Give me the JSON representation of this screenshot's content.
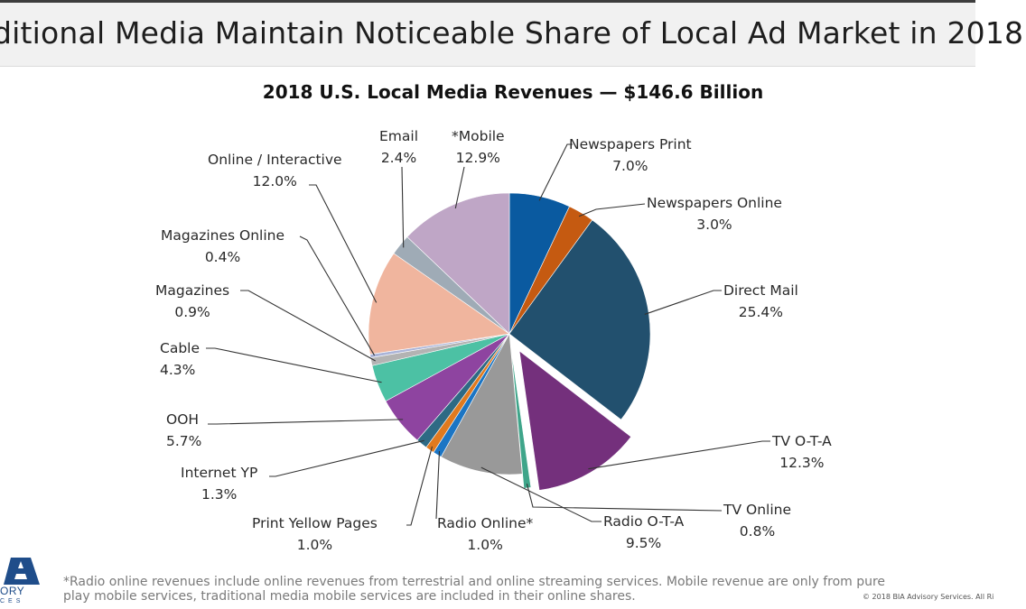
{
  "headline": "ditional Media Maintain Noticeable Share of Local Ad Market in 2018",
  "chart_data": {
    "type": "pie",
    "title": "2018 U.S. Local Media Revenues — $146.6 Billion",
    "start": "12 o'clock, clockwise",
    "slices": [
      {
        "name": "Newspapers Print",
        "value": 7.0,
        "label": "7.0%",
        "color": "#0a5aa0",
        "exploded": false
      },
      {
        "name": "Newspapers Online",
        "value": 3.0,
        "label": "3.0%",
        "color": "#c55a11",
        "exploded": false
      },
      {
        "name": "Direct Mail",
        "value": 25.4,
        "label": "25.4%",
        "color": "#22506e",
        "exploded": false
      },
      {
        "name": "TV O-T-A",
        "value": 12.3,
        "label": "12.3%",
        "color": "#74307c",
        "exploded": true
      },
      {
        "name": "TV Online",
        "value": 0.8,
        "label": "0.8%",
        "color": "#3fa58a",
        "exploded": true
      },
      {
        "name": "Radio O-T-A",
        "value": 9.5,
        "label": "9.5%",
        "color": "#999999",
        "exploded": false
      },
      {
        "name": "Radio Online*",
        "value": 1.0,
        "label": "1.0%",
        "color": "#1b75c4",
        "exploded": false
      },
      {
        "name": "Print Yellow Pages",
        "value": 1.0,
        "label": "1.0%",
        "color": "#e07a1f",
        "exploded": false
      },
      {
        "name": "Internet YP",
        "value": 1.3,
        "label": "1.3%",
        "color": "#2e6a84",
        "exploded": false
      },
      {
        "name": "OOH",
        "value": 5.7,
        "label": "5.7%",
        "color": "#8e44a0",
        "exploded": false
      },
      {
        "name": "Cable",
        "value": 4.3,
        "label": "4.3%",
        "color": "#4cc1a4",
        "exploded": false
      },
      {
        "name": "Magazines",
        "value": 0.9,
        "label": "0.9%",
        "color": "#b3b3b3",
        "exploded": false
      },
      {
        "name": "Magazines Online",
        "value": 0.4,
        "label": "0.4%",
        "color": "#aab4d8",
        "exploded": false
      },
      {
        "name": "Online / Interactive",
        "value": 12.0,
        "label": "12.0%",
        "color": "#f0b59e",
        "exploded": false
      },
      {
        "name": "Email",
        "value": 2.4,
        "label": "2.4%",
        "color": "#9fabb6",
        "exploded": false
      },
      {
        "name": "*Mobile",
        "value": 12.9,
        "label": "12.9%",
        "color": "#bfa6c6",
        "exploded": false
      }
    ],
    "total": "$146.6 Billion"
  },
  "footnote": {
    "line1": "*Radio online revenues include online revenues from terrestrial and online streaming services. Mobile revenue are only from pure",
    "line2": "play mobile services, traditional media mobile services are included in their online shares."
  },
  "copyright": "© 2018 BIA Advisory Services. All Ri",
  "logo": {
    "letter": "A",
    "line1": "ORY",
    "line2": "CES",
    "color": "#1f4d8a"
  }
}
